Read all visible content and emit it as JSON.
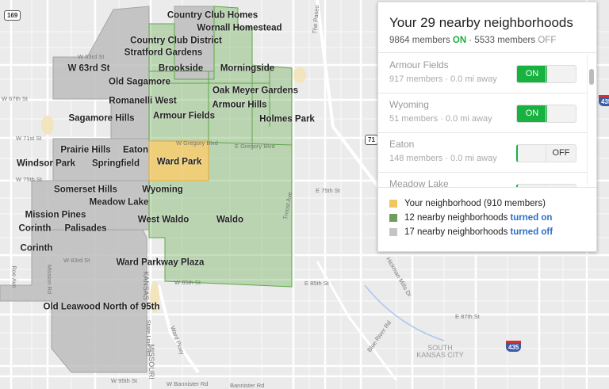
{
  "colors": {
    "yours": "#f0c75e",
    "on": "#7fb56a",
    "off": "#bdbdbd",
    "toggle_on": "#17b240",
    "link": "#2a6fc8"
  },
  "panel": {
    "title": "Your 29 nearby neighborhoods",
    "summary": {
      "on_count": "9864 members",
      "on_label": "ON",
      "separator": "·",
      "off_count": "5533 members",
      "off_label": "OFF"
    },
    "items": [
      {
        "name": "Armour Fields",
        "meta": "917 members · 0.0 mi away",
        "state": "ON",
        "on_label": "ON",
        "off_label": ""
      },
      {
        "name": "Wyoming",
        "meta": "51 members · 0.0 mi away",
        "state": "ON",
        "on_label": "ON",
        "off_label": ""
      },
      {
        "name": "Eaton",
        "meta": "148 members · 0.0 mi away",
        "state": "OFF",
        "on_label": "",
        "off_label": "OFF"
      },
      {
        "name": "Meadow Lake",
        "meta": "",
        "state": "OFF",
        "on_label": "",
        "off_label": ""
      }
    ],
    "legend": [
      {
        "text": "Your neighborhood (910 members)",
        "link": "",
        "icon": "yellow-square"
      },
      {
        "text": "12 nearby neighborhoods",
        "link": "turned on",
        "icon": "green-square"
      },
      {
        "text": "17 nearby neighborhoods",
        "link": "turned off",
        "icon": "gray-square"
      }
    ]
  },
  "map": {
    "neighborhoods": [
      "Country Club Homes",
      "Wornall Homestead",
      "Country Club District",
      "Stratford Gardens",
      "W 63rd St",
      "Brookside",
      "Morningside",
      "Old Sagamore",
      "Oak Meyer Gardens",
      "Romanelli West",
      "Armour Fields",
      "Armour Hills",
      "Holmes Park",
      "Sagamore Hills",
      "Prairie Hills",
      "Eaton",
      "Windsor Park",
      "Springfield",
      "Ward Park",
      "Wyoming",
      "Somerset Hills",
      "Meadow Lake",
      "Mission Pines",
      "Corinth",
      "Palisades",
      "West Waldo",
      "Waldo",
      "Corinth",
      "Ward Parkway Plaza",
      "Old Leawood North of 95th"
    ],
    "streets": [
      "W 63rd St",
      "W 67th St",
      "W 71st St",
      "W 75th St",
      "W 83rd St",
      "W 85th St",
      "W 95th St",
      "W Bannister Rd",
      "Bannister Rd",
      "E 75th St",
      "E 85th St",
      "E 87th St",
      "E Gregory Blvd",
      "W Gregory Blvd",
      "Roe Ave",
      "Mission Rd",
      "State Line Rd",
      "Ward Pkwy",
      "Troost Ave",
      "The Paseo",
      "Hickman Mills Dr",
      "Blue River Rd",
      "KANSAS",
      "MISSOURI",
      "SOUTH KANSAS CITY"
    ],
    "shields": [
      "169",
      "71",
      "435",
      "435"
    ]
  }
}
